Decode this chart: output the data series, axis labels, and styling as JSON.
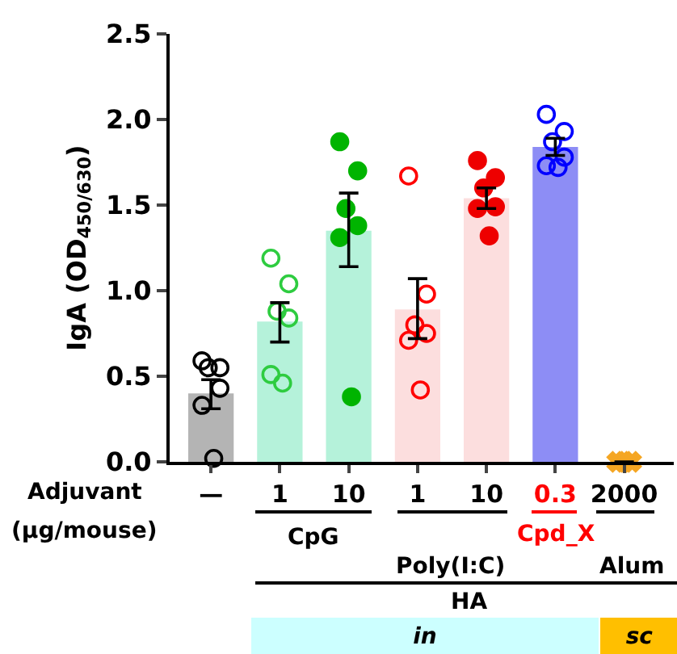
{
  "chart_data": {
    "type": "bar",
    "ylabel": "IgA (OD$_{450/630}$)",
    "categories": [
      "—",
      "1",
      "10",
      "1",
      "10",
      "0.3",
      "2000"
    ],
    "ylim": [
      0,
      2.5
    ],
    "yticks": [
      {
        "value": 0,
        "label": "0.0"
      },
      {
        "value": 0.5,
        "label": "0.5"
      },
      {
        "value": 1,
        "label": "1.0"
      },
      {
        "value": 1.5,
        "label": "1.5"
      },
      {
        "value": 2,
        "label": "2.0"
      },
      {
        "value": 2.5,
        "label": "2.5"
      }
    ],
    "grid": false,
    "series": [
      {
        "colors": [
          "#b4b4b4",
          "#b5f2da",
          "#b5f2da",
          "#fcdede",
          "#fcdede",
          "#8d8df5",
          "#f5a623"
        ],
        "values": [
          0.4,
          0.82,
          1.35,
          0.89,
          1.54,
          1.84,
          0
        ],
        "errors": [
          [
            0.31,
            0.48
          ],
          [
            0.7,
            0.93
          ],
          [
            1.14,
            1.57
          ],
          [
            0.72,
            1.07
          ],
          [
            1.48,
            1.6
          ],
          [
            1.79,
            1.89
          ],
          null
        ]
      },
      {
        "type": "scatter",
        "marker": "circle-open",
        "colors": [
          "#000000",
          "#2ecc40",
          null,
          "#ff0000",
          null,
          "#0000ff",
          null
        ],
        "values": [
          0.59,
          1.19,
          null,
          1.67,
          null,
          2.03,
          null
        ]
      },
      {
        "type": "scatter",
        "marker": "circle-open",
        "colors": [
          "#000000",
          "#2ecc40",
          null,
          "#ff0000",
          null,
          "#0000ff",
          null
        ],
        "values": [
          0.55,
          1.04,
          null,
          0.98,
          null,
          1.93,
          null
        ]
      },
      {
        "type": "scatter",
        "marker": "circle-open",
        "colors": [
          "#000000",
          "#2ecc40",
          null,
          "#ff0000",
          null,
          "#0000ff",
          null
        ],
        "values": [
          0.55,
          0.88,
          null,
          0.8,
          null,
          1.87,
          null
        ]
      },
      {
        "type": "scatter",
        "marker": "circle-open",
        "colors": [
          "#000000",
          "#2ecc40",
          null,
          "#ff0000",
          null,
          "#0000ff",
          null
        ],
        "values": [
          0.43,
          0.84,
          null,
          0.75,
          null,
          1.78,
          null
        ]
      },
      {
        "type": "scatter",
        "marker": "circle-open",
        "colors": [
          "#000000",
          "#2ecc40",
          null,
          "#ff0000",
          null,
          "#0000ff",
          null
        ],
        "values": [
          0.33,
          0.51,
          null,
          0.71,
          null,
          1.73,
          null
        ]
      },
      {
        "type": "scatter",
        "marker": "circle-open",
        "colors": [
          "#000000",
          "#2ecc40",
          null,
          "#ff0000",
          null,
          "#0000ff",
          null
        ],
        "values": [
          0.02,
          0.46,
          null,
          0.42,
          null,
          1.72,
          null
        ]
      },
      {
        "type": "scatter",
        "marker": "circle",
        "colors": [
          null,
          null,
          "#00b400",
          null,
          "#ee0000",
          null,
          null
        ],
        "values": [
          null,
          null,
          1.87,
          null,
          1.76,
          null,
          null
        ]
      },
      {
        "type": "scatter",
        "marker": "circle",
        "colors": [
          null,
          null,
          "#00b400",
          null,
          "#ee0000",
          null,
          null
        ],
        "values": [
          null,
          null,
          1.7,
          null,
          1.66,
          null,
          null
        ]
      },
      {
        "type": "scatter",
        "marker": "circle",
        "colors": [
          null,
          null,
          "#00b400",
          null,
          "#ee0000",
          null,
          null
        ],
        "values": [
          null,
          null,
          1.48,
          null,
          1.6,
          null,
          null
        ]
      },
      {
        "type": "scatter",
        "marker": "circle",
        "colors": [
          null,
          null,
          "#00b400",
          null,
          "#ee0000",
          null,
          null
        ],
        "values": [
          null,
          null,
          1.38,
          null,
          1.49,
          null,
          null
        ]
      },
      {
        "type": "scatter",
        "marker": "circle",
        "colors": [
          null,
          null,
          "#00b400",
          null,
          "#ee0000",
          null,
          null
        ],
        "values": [
          null,
          null,
          1.31,
          null,
          1.48,
          null,
          null
        ]
      },
      {
        "type": "scatter",
        "marker": "circle",
        "colors": [
          null,
          null,
          "#00b400",
          null,
          "#ee0000",
          null,
          null
        ],
        "values": [
          null,
          null,
          0.38,
          null,
          1.32,
          null,
          null
        ]
      },
      {
        "type": "scatter",
        "marker": "cross",
        "color": "#f5a623",
        "values": [
          null,
          null,
          null,
          null,
          null,
          null,
          0
        ]
      },
      {
        "type": "scatter",
        "marker": "cross",
        "color": "#f5a623",
        "values": [
          null,
          null,
          null,
          null,
          null,
          null,
          0
        ]
      },
      {
        "type": "scatter",
        "marker": "cross",
        "color": "#f5a623",
        "values": [
          null,
          null,
          null,
          null,
          null,
          null,
          0
        ]
      }
    ],
    "annotations": [
      "Adjuvant",
      "(µg/mouse)",
      "CpG",
      "Poly(I:C)",
      "Cpd_X",
      "Alum",
      "HA",
      "in",
      "sc"
    ]
  }
}
